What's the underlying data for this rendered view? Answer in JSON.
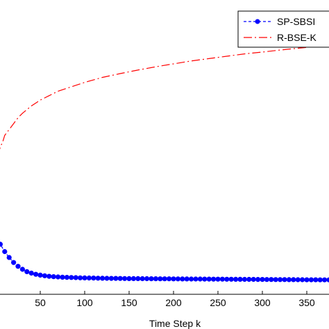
{
  "chart_data": {
    "type": "line",
    "xlabel": "Time Step k",
    "ylabel": "",
    "xlim": [
      0,
      375
    ],
    "ylim": [
      0,
      1
    ],
    "xticks": [
      50,
      100,
      150,
      200,
      250,
      300,
      350
    ],
    "grid": false,
    "legend_position": "top-right",
    "series": [
      {
        "name": "SP-SBSI",
        "color": "#0000ff",
        "style": "dashed-with-dots",
        "x": [
          0,
          5,
          10,
          15,
          20,
          25,
          30,
          35,
          40,
          45,
          50,
          55,
          60,
          65,
          70,
          75,
          80,
          85,
          90,
          95,
          100,
          105,
          110,
          115,
          120,
          125,
          130,
          135,
          140,
          145,
          150,
          155,
          160,
          165,
          170,
          175,
          180,
          185,
          190,
          195,
          200,
          205,
          210,
          215,
          220,
          225,
          230,
          235,
          240,
          245,
          250,
          255,
          260,
          265,
          270,
          275,
          280,
          285,
          290,
          295,
          300,
          305,
          310,
          315,
          320,
          325,
          330,
          335,
          340,
          345,
          350,
          355,
          360,
          365,
          370,
          375
        ],
        "y": [
          0.19,
          0.17,
          0.145,
          0.125,
          0.108,
          0.095,
          0.085,
          0.077,
          0.072,
          0.068,
          0.065,
          0.063,
          0.061,
          0.06,
          0.059,
          0.058,
          0.0575,
          0.057,
          0.0565,
          0.056,
          0.0557,
          0.0554,
          0.0551,
          0.0548,
          0.0545,
          0.0543,
          0.0541,
          0.0539,
          0.0537,
          0.0535,
          0.0534,
          0.0533,
          0.0532,
          0.0531,
          0.053,
          0.0529,
          0.0528,
          0.0527,
          0.0526,
          0.0525,
          0.0524,
          0.0523,
          0.0522,
          0.0521,
          0.052,
          0.0519,
          0.0518,
          0.0517,
          0.0516,
          0.0515,
          0.0514,
          0.0513,
          0.0512,
          0.0511,
          0.051,
          0.0509,
          0.0508,
          0.0507,
          0.0506,
          0.0505,
          0.0504,
          0.0503,
          0.0502,
          0.0501,
          0.05,
          0.0499,
          0.0498,
          0.0497,
          0.0496,
          0.0495,
          0.0494,
          0.0493,
          0.0492,
          0.0491,
          0.049,
          0.049
        ]
      },
      {
        "name": "R-BSE-K",
        "color": "#ff0000",
        "style": "dash-dot",
        "x": [
          0,
          2,
          5,
          8,
          10,
          15,
          20,
          25,
          30,
          40,
          50,
          60,
          70,
          80,
          100,
          120,
          140,
          160,
          180,
          200,
          220,
          240,
          260,
          280,
          300,
          320,
          340,
          360,
          375
        ],
        "y": [
          0.42,
          0.47,
          0.5,
          0.52,
          0.54,
          0.56,
          0.58,
          0.6,
          0.615,
          0.64,
          0.66,
          0.675,
          0.69,
          0.7,
          0.72,
          0.737,
          0.75,
          0.762,
          0.773,
          0.783,
          0.793,
          0.801,
          0.809,
          0.817,
          0.823,
          0.83,
          0.836,
          0.842,
          0.846
        ]
      }
    ]
  }
}
